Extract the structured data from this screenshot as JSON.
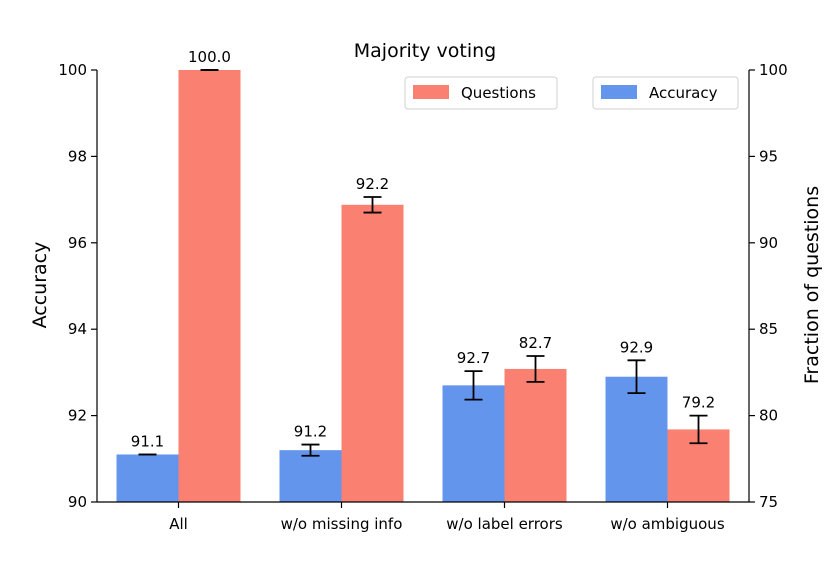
{
  "chart_data": {
    "type": "bar",
    "title": "Majority voting",
    "categories": [
      "All",
      "w/o missing info",
      "w/o label errors",
      "w/o ambiguous"
    ],
    "left_axis": {
      "label": "Accuracy",
      "ylim": [
        90,
        100
      ],
      "ticks": [
        "90",
        "92",
        "94",
        "96",
        "98",
        "100"
      ]
    },
    "right_axis": {
      "label": "Fraction of questions",
      "ylim": [
        75,
        100
      ],
      "ticks": [
        "75",
        "80",
        "85",
        "90",
        "95",
        "100"
      ]
    },
    "series": [
      {
        "name": "Accuracy",
        "axis": "left",
        "color": "#6495ED",
        "values": [
          91.1,
          91.2,
          92.7,
          92.9
        ],
        "labels": [
          "91.1",
          "91.2",
          "92.7",
          "92.9"
        ],
        "errors": [
          0.0,
          0.13,
          0.33,
          0.38
        ]
      },
      {
        "name": "Questions",
        "axis": "right",
        "color": "#FA8072",
        "values": [
          100.0,
          92.2,
          82.7,
          79.2
        ],
        "labels": [
          "100.0",
          "92.2",
          "82.7",
          "79.2"
        ],
        "errors": [
          0.0,
          0.45,
          0.75,
          0.8
        ]
      }
    ],
    "legend": [
      "Questions",
      "Accuracy"
    ],
    "grid": false
  }
}
